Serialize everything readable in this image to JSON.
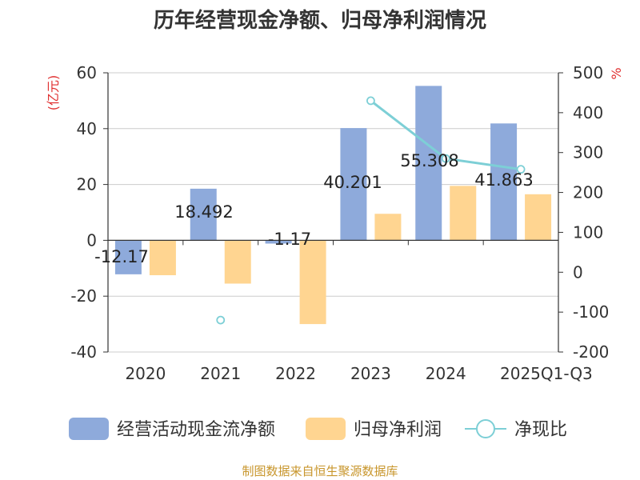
{
  "chart_data": {
    "type": "bar",
    "title": "历年经营现金净额、归母净利润情况",
    "categories": [
      "2020",
      "2021",
      "2022",
      "2023",
      "2024",
      "2025Q1-Q3"
    ],
    "left_axis": {
      "unit": "(亿元)",
      "ylim": [
        -40,
        60
      ],
      "ticks": [
        -40,
        -20,
        0,
        20,
        40,
        60
      ]
    },
    "right_axis": {
      "unit": "%",
      "ylim": [
        -200,
        500
      ],
      "ticks": [
        -200,
        -100,
        0,
        100,
        200,
        300,
        400,
        500
      ]
    },
    "series": [
      {
        "name": "经营活动现金流净额",
        "type": "bar",
        "axis": "left",
        "color": "#8eaadb",
        "values": [
          -12.17,
          18.492,
          -1.17,
          40.201,
          55.308,
          41.863
        ],
        "labels": [
          "-12.17",
          "18.492",
          "-1.17",
          "40.201",
          "55.308",
          "41.863"
        ]
      },
      {
        "name": "归母净利润",
        "type": "bar",
        "axis": "left",
        "color": "#ffd591",
        "values": [
          -12.5,
          -15.5,
          -30.0,
          9.5,
          19.5,
          16.5
        ]
      },
      {
        "name": "净现比",
        "type": "line",
        "axis": "right",
        "color": "#7dcfd6",
        "values": [
          null,
          -120,
          null,
          430,
          285,
          258
        ]
      }
    ],
    "grid": true,
    "legend_position": "bottom"
  },
  "source_text": "制图数据来自恒生聚源数据库"
}
